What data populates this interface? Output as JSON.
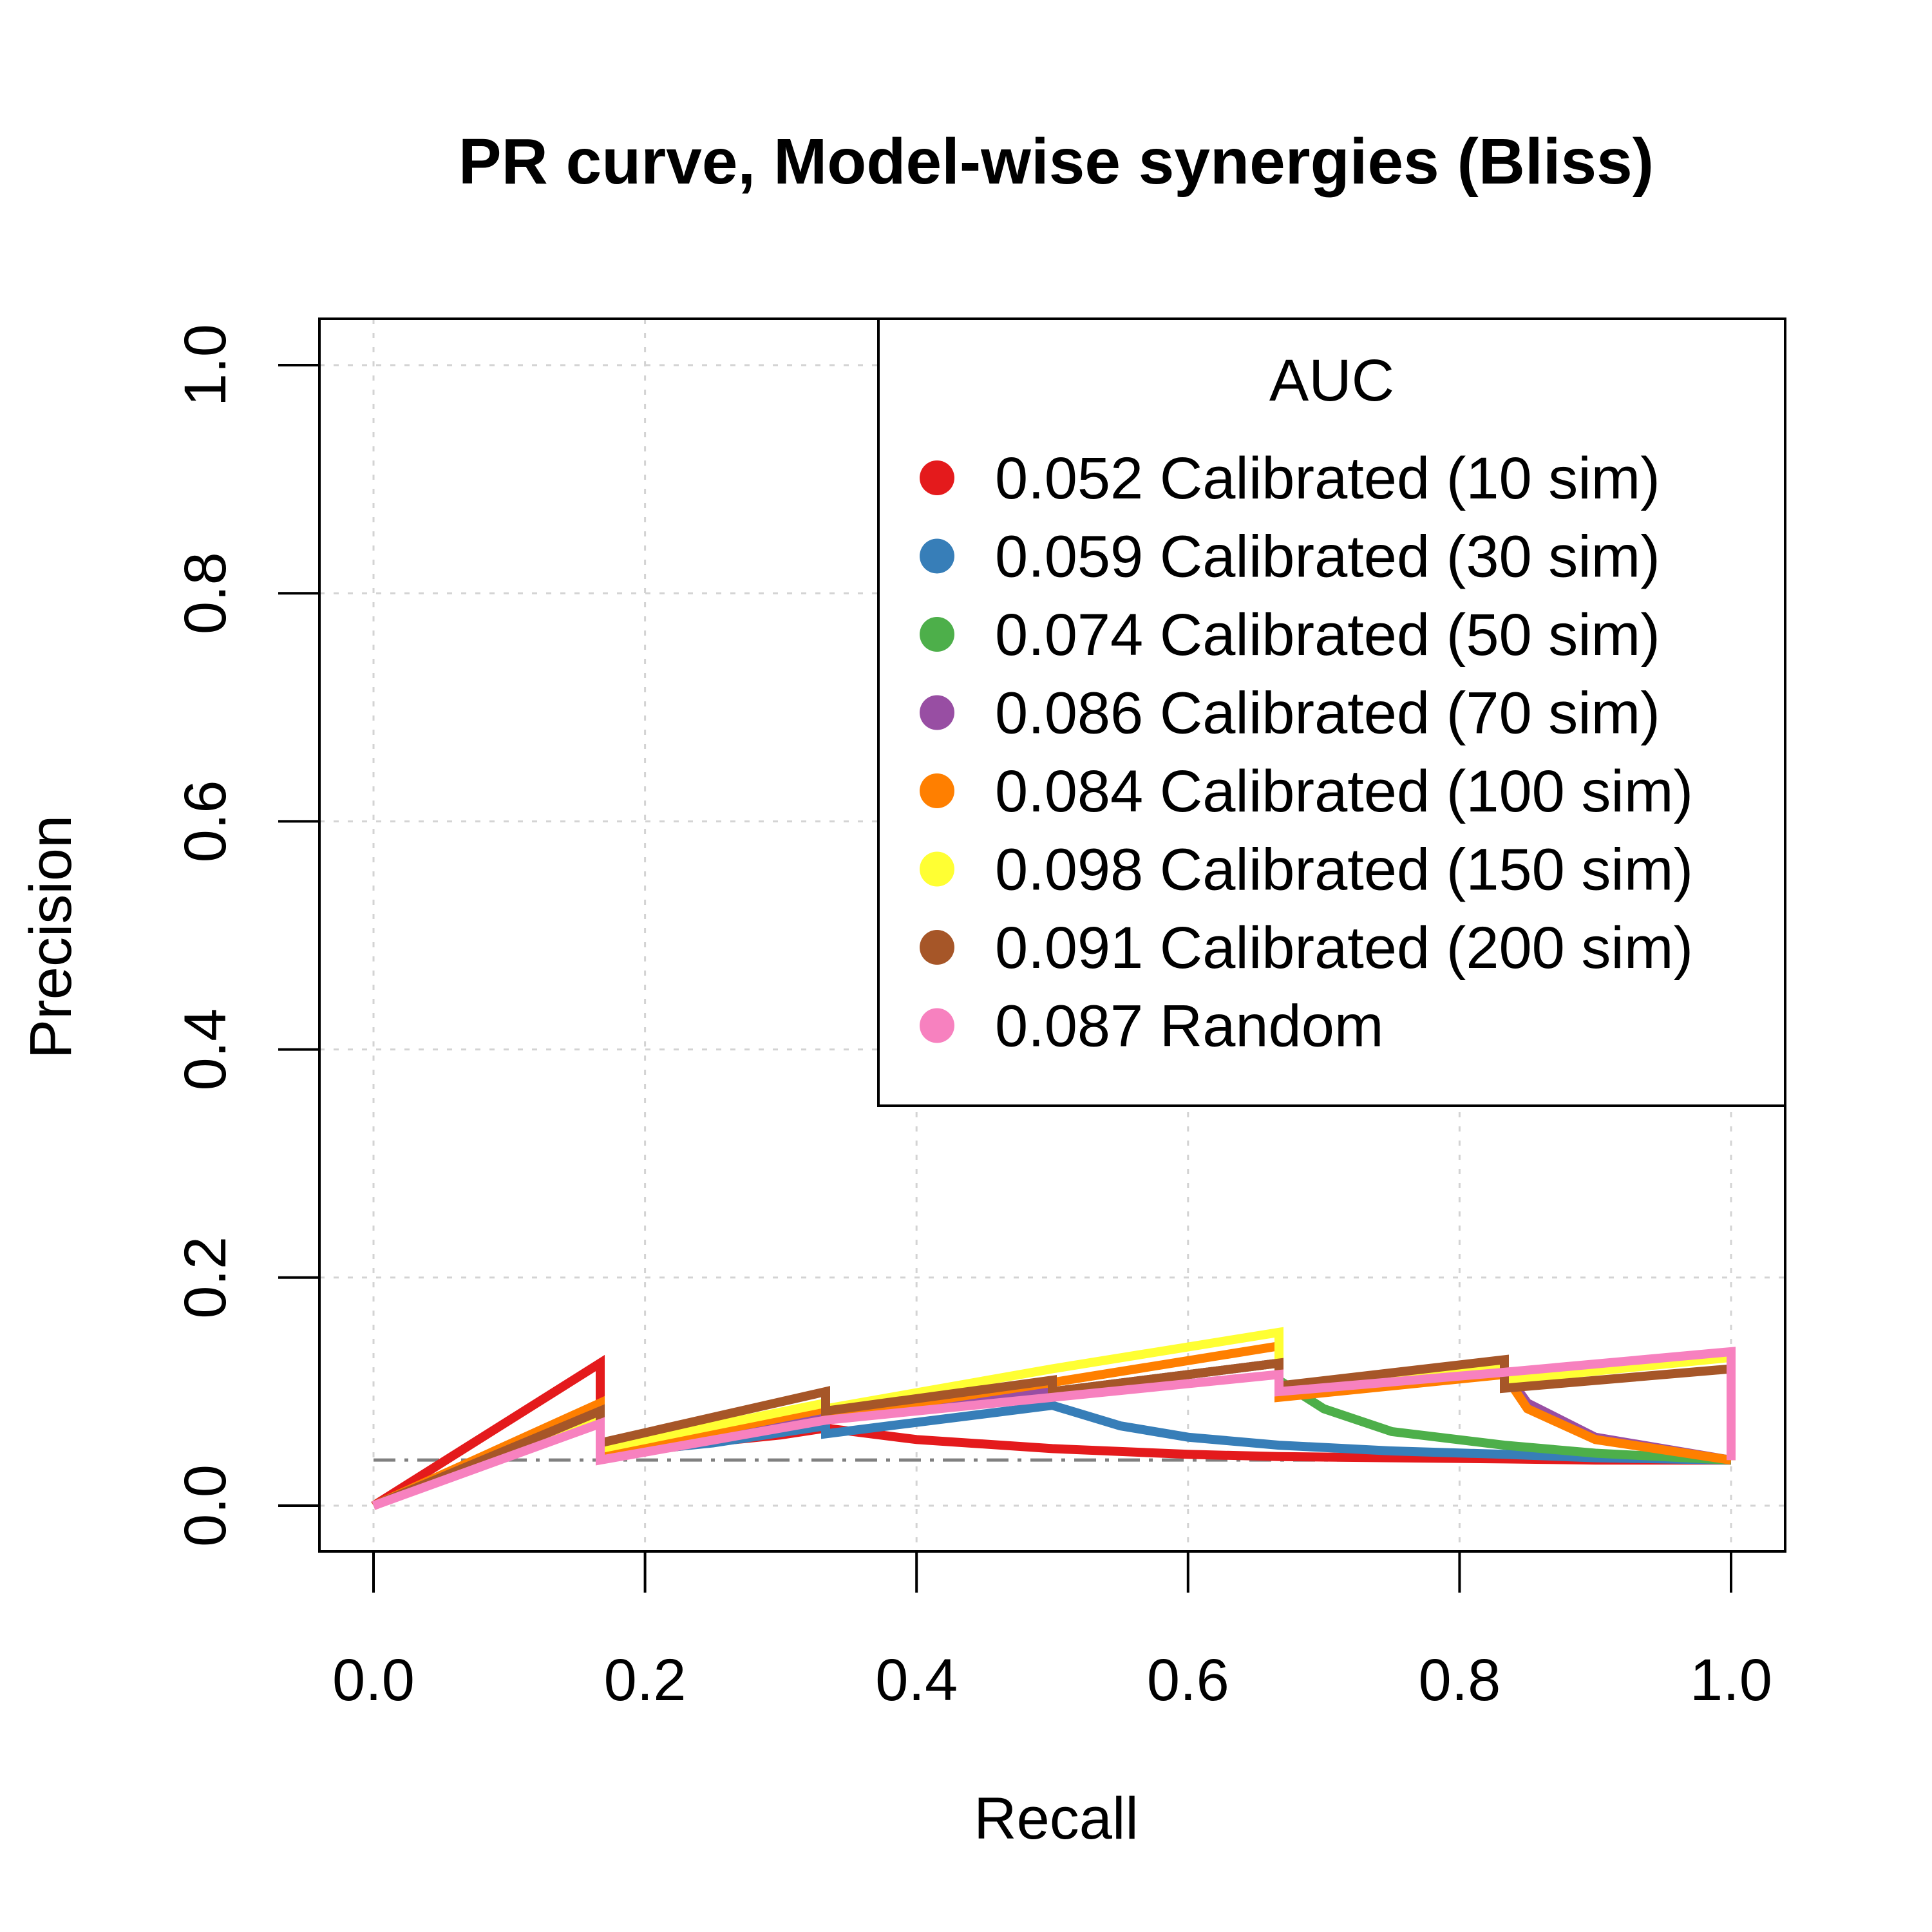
{
  "chart_data": {
    "type": "line",
    "title": "PR curve, Model-wise synergies (Bliss)",
    "xlabel": "Recall",
    "ylabel": "Precision",
    "xlim": [
      0,
      1
    ],
    "ylim": [
      0,
      1
    ],
    "x_ticks": [
      "0.0",
      "0.2",
      "0.4",
      "0.6",
      "0.8",
      "1.0"
    ],
    "y_ticks": [
      "0.0",
      "0.2",
      "0.4",
      "0.6",
      "0.8",
      "1.0"
    ],
    "grid": true,
    "baseline": {
      "y": 0.04,
      "style": "dash-dot",
      "color": "#808080"
    },
    "legend": {
      "title": "AUC",
      "placement": "top-right",
      "entries": [
        "0.052 Calibrated (10 sim)",
        "0.059 Calibrated (30 sim)",
        "0.074 Calibrated (50 sim)",
        "0.086 Calibrated (70 sim)",
        "0.084 Calibrated (100 sim)",
        "0.098 Calibrated (150 sim)",
        "0.091 Calibrated (200 sim)",
        "0.087 Random"
      ]
    },
    "series": [
      {
        "name": "0.052 Calibrated (10 sim)",
        "color": "#E41A1C",
        "x": [
          0,
          0.167,
          0.167,
          0.2,
          0.25,
          0.3,
          0.333,
          0.333,
          0.4,
          0.5,
          0.6,
          0.667,
          0.75,
          0.833,
          0.9,
          1.0
        ],
        "y": [
          0,
          0.125,
          0.042,
          0.048,
          0.056,
          0.062,
          0.068,
          0.068,
          0.058,
          0.05,
          0.045,
          0.043,
          0.042,
          0.041,
          0.04,
          0.04
        ]
      },
      {
        "name": "0.059 Calibrated (30 sim)",
        "color": "#377EB8",
        "x": [
          0,
          0.167,
          0.167,
          0.25,
          0.333,
          0.333,
          0.4,
          0.5,
          0.55,
          0.6,
          0.667,
          0.75,
          0.833,
          0.9,
          1.0
        ],
        "y": [
          0,
          0.08,
          0.045,
          0.055,
          0.07,
          0.063,
          0.073,
          0.088,
          0.07,
          0.06,
          0.053,
          0.048,
          0.045,
          0.042,
          0.04
        ]
      },
      {
        "name": "0.074 Calibrated (50 sim)",
        "color": "#4DAF4A",
        "x": [
          0,
          0.167,
          0.167,
          0.333,
          0.333,
          0.5,
          0.667,
          0.667,
          0.7,
          0.75,
          0.833,
          0.9,
          1.0
        ],
        "y": [
          0,
          0.08,
          0.045,
          0.08,
          0.075,
          0.1,
          0.125,
          0.11,
          0.085,
          0.065,
          0.053,
          0.046,
          0.04
        ]
      },
      {
        "name": "0.086 Calibrated (70 sim)",
        "color": "#984EA3",
        "x": [
          0,
          0.167,
          0.167,
          0.333,
          0.333,
          0.5,
          0.667,
          0.667,
          0.833,
          0.833,
          0.85,
          0.9,
          1.0
        ],
        "y": [
          0,
          0.08,
          0.045,
          0.08,
          0.075,
          0.1,
          0.125,
          0.1,
          0.115,
          0.118,
          0.09,
          0.06,
          0.04
        ]
      },
      {
        "name": "0.084 Calibrated (100 sim)",
        "color": "#FF7F00",
        "x": [
          0,
          0.167,
          0.167,
          0.333,
          0.333,
          0.5,
          0.667,
          0.667,
          0.833,
          0.833,
          0.85,
          0.9,
          1.0
        ],
        "y": [
          0,
          0.09,
          0.045,
          0.085,
          0.078,
          0.108,
          0.14,
          0.095,
          0.115,
          0.115,
          0.085,
          0.058,
          0.04
        ]
      },
      {
        "name": "0.098 Calibrated (150 sim)",
        "color": "#FFFF33",
        "x": [
          0,
          0.167,
          0.167,
          0.333,
          0.333,
          0.5,
          0.667,
          0.667,
          0.833,
          0.833,
          1.0,
          1.0
        ],
        "y": [
          0,
          0.08,
          0.05,
          0.09,
          0.085,
          0.12,
          0.152,
          0.105,
          0.12,
          0.11,
          0.13,
          0.04
        ]
      },
      {
        "name": "0.091 Calibrated (200 sim)",
        "color": "#A65628",
        "x": [
          0,
          0.167,
          0.167,
          0.333,
          0.333,
          0.5,
          0.5,
          0.667,
          0.667,
          0.833,
          0.833,
          1.0,
          1.0
        ],
        "y": [
          0,
          0.083,
          0.055,
          0.1,
          0.083,
          0.11,
          0.1,
          0.125,
          0.105,
          0.128,
          0.103,
          0.12,
          0.04
        ]
      },
      {
        "name": "0.087 Random",
        "color": "#F781BF",
        "x": [
          0,
          0.167,
          0.167,
          0.333,
          0.5,
          0.667,
          0.667,
          0.833,
          1.0,
          1.0
        ],
        "y": [
          0,
          0.072,
          0.04,
          0.075,
          0.095,
          0.115,
          0.1,
          0.117,
          0.135,
          0.04
        ]
      }
    ]
  }
}
